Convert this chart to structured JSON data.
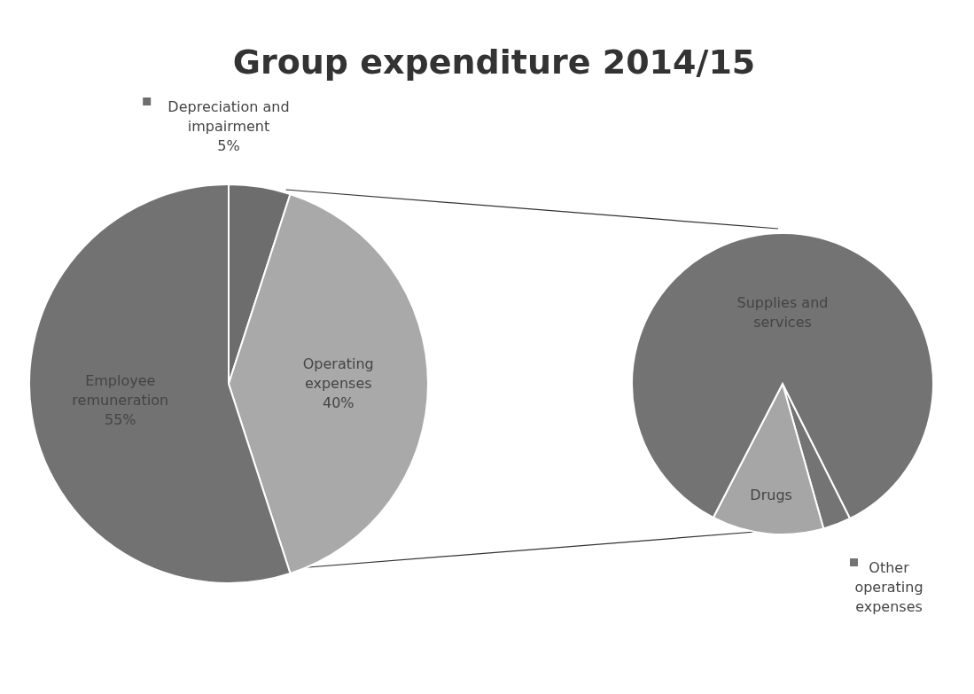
{
  "chart_data": [
    {
      "type": "pie",
      "title": "Group expenditure 2014/15",
      "categories": [
        "Depreciation and impairment",
        "Operating expenses",
        "Employee remuneration"
      ],
      "values": [
        5,
        40,
        55
      ],
      "colors": [
        "#6d6d6d",
        "#a9a9a9",
        "#727272"
      ],
      "value_labels": [
        "5%",
        "40%",
        "55%"
      ]
    },
    {
      "type": "pie",
      "categories": [
        "Other operating expenses",
        "Drugs",
        "Supplies and services"
      ],
      "values": [
        3,
        12,
        85
      ],
      "colors": [
        "#747474",
        "#a6a6a6",
        "#737373"
      ]
    }
  ]
}
